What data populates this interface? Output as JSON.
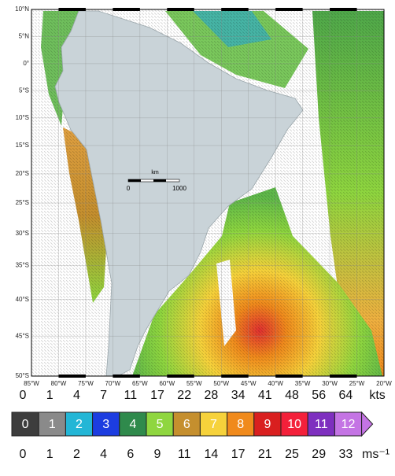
{
  "map": {
    "lat_labels": [
      "10°N",
      "5°N",
      "0°",
      "5°S",
      "10°S",
      "15°S",
      "20°S",
      "25°S",
      "30°S",
      "35°S",
      "40°S",
      "45°S",
      "50°S"
    ],
    "lon_labels": [
      "85°W",
      "80°W",
      "75°W",
      "70°W",
      "65°W",
      "60°W",
      "55°W",
      "50°W",
      "45°W",
      "40°W",
      "35°W",
      "30°W",
      "25°W",
      "20°W"
    ],
    "scale_bar": {
      "unit": "km",
      "start": "0",
      "end": "1000"
    }
  },
  "colorbar": {
    "kts_labels": [
      "0",
      "1",
      "4",
      "7",
      "11",
      "17",
      "22",
      "28",
      "34",
      "41",
      "48",
      "56",
      "64"
    ],
    "kts_unit": "kts",
    "bins": [
      {
        "label": "0",
        "color": "#3d3d3d"
      },
      {
        "label": "1",
        "color": "#8a8a8a"
      },
      {
        "label": "2",
        "color": "#23b6d6"
      },
      {
        "label": "3",
        "color": "#1c3de0"
      },
      {
        "label": "4",
        "color": "#2f8a4c"
      },
      {
        "label": "5",
        "color": "#8fd63f"
      },
      {
        "label": "6",
        "color": "#c58f2e"
      },
      {
        "label": "7",
        "color": "#f6d23b"
      },
      {
        "label": "8",
        "color": "#f08a1c"
      },
      {
        "label": "9",
        "color": "#d91f1f"
      },
      {
        "label": "10",
        "color": "#f3203a"
      },
      {
        "label": "11",
        "color": "#7e2fbf"
      },
      {
        "label": "12",
        "color": "#c474e4"
      }
    ],
    "ms_labels": [
      "0",
      "1",
      "2",
      "4",
      "6",
      "9",
      "11",
      "14",
      "17",
      "21",
      "25",
      "29",
      "33"
    ],
    "ms_unit": "ms⁻¹"
  }
}
